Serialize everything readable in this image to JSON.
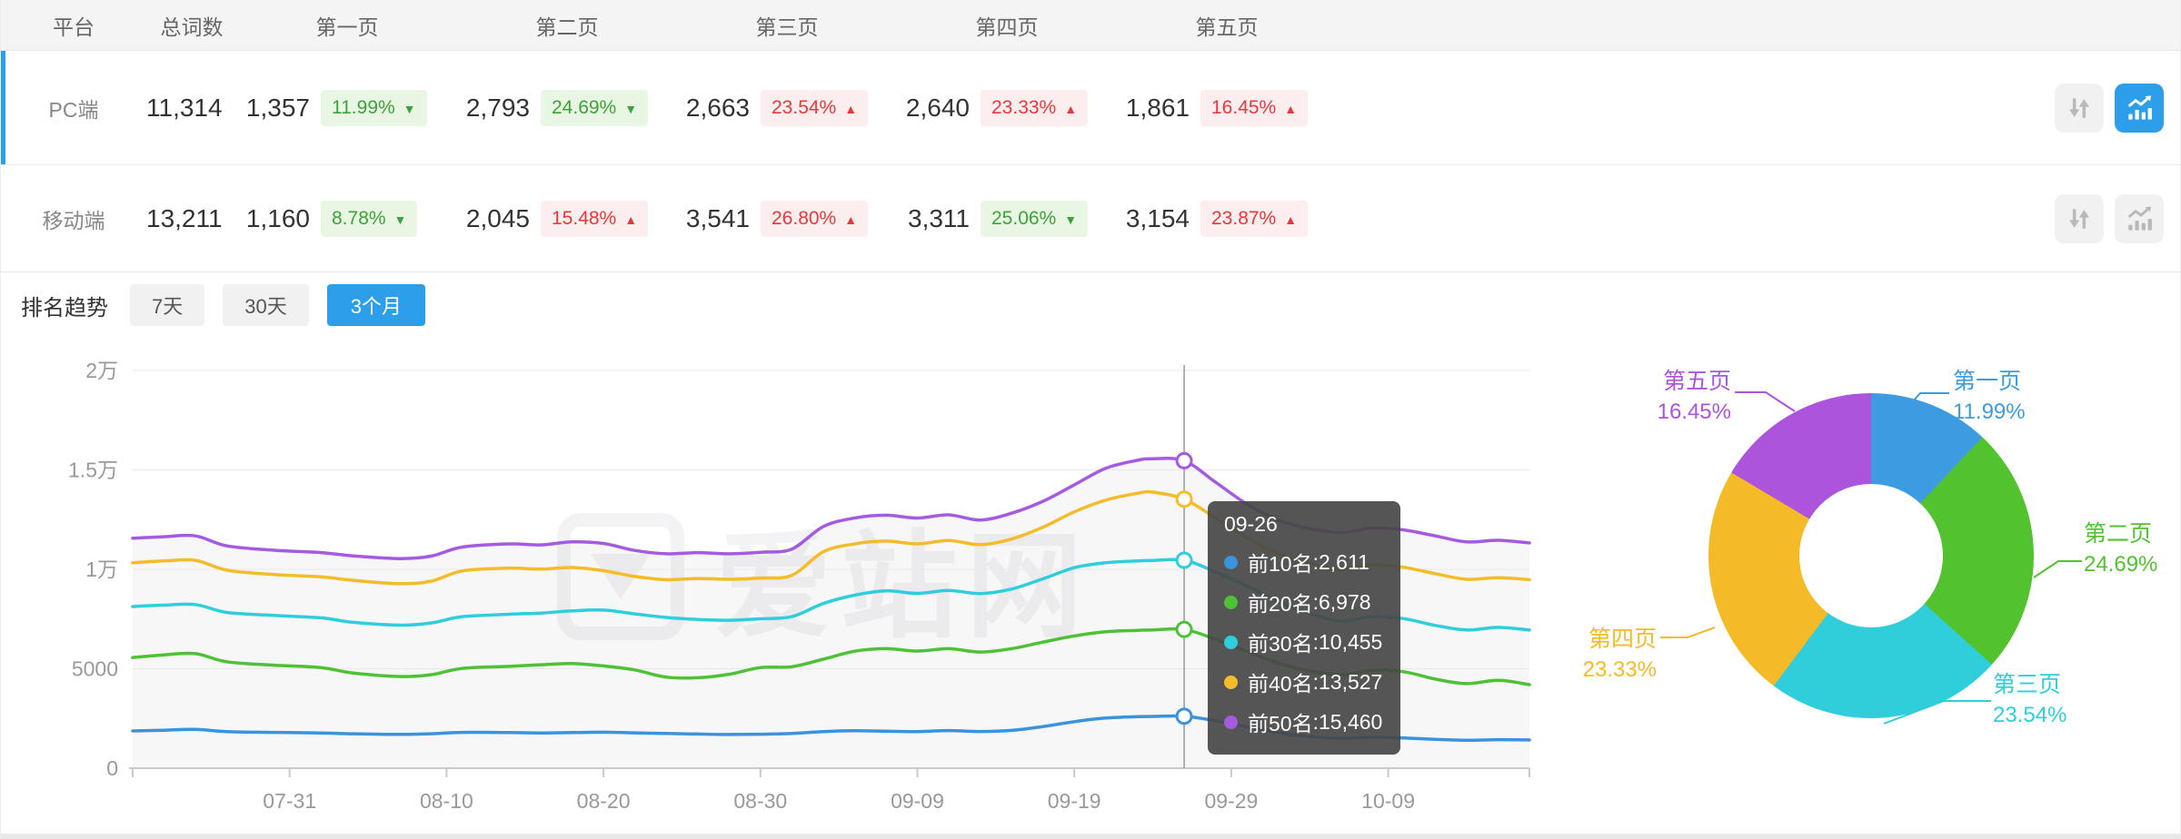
{
  "colors": {
    "accent": "#2d9ee9",
    "badge_green_bg": "#e9f6e4",
    "badge_green_text": "#3da23a",
    "badge_red_bg": "#fcedee",
    "badge_red_text": "#e6393b"
  },
  "table": {
    "headers": [
      "平台",
      "总词数",
      "第一页",
      "第二页",
      "第三页",
      "第四页",
      "第五页"
    ],
    "rows": [
      {
        "platform": "PC端",
        "total": "11,314",
        "selected": true,
        "pages": [
          {
            "count": "1,357",
            "pct": "11.99%",
            "arrow": "▼",
            "tone": "green"
          },
          {
            "count": "2,793",
            "pct": "24.69%",
            "arrow": "▼",
            "tone": "green"
          },
          {
            "count": "2,663",
            "pct": "23.54%",
            "arrow": "▲",
            "tone": "red"
          },
          {
            "count": "2,640",
            "pct": "23.33%",
            "arrow": "▲",
            "tone": "red"
          },
          {
            "count": "1,861",
            "pct": "16.45%",
            "arrow": "▲",
            "tone": "red"
          }
        ]
      },
      {
        "platform": "移动端",
        "total": "13,211",
        "selected": false,
        "pages": [
          {
            "count": "1,160",
            "pct": "8.78%",
            "arrow": "▼",
            "tone": "green"
          },
          {
            "count": "2,045",
            "pct": "15.48%",
            "arrow": "▲",
            "tone": "red"
          },
          {
            "count": "3,541",
            "pct": "26.80%",
            "arrow": "▲",
            "tone": "red"
          },
          {
            "count": "3,311",
            "pct": "25.06%",
            "arrow": "▼",
            "tone": "green"
          },
          {
            "count": "3,154",
            "pct": "23.87%",
            "arrow": "▲",
            "tone": "red"
          }
        ]
      }
    ]
  },
  "trend": {
    "title": "排名趋势",
    "ranges": [
      {
        "label": "7天",
        "active": false
      },
      {
        "label": "30天",
        "active": false
      },
      {
        "label": "3个月",
        "active": true
      }
    ]
  },
  "tooltip": {
    "date": "09-26",
    "sep": ": ",
    "items": [
      {
        "label": "前10名",
        "value": "2,611",
        "color": "#3b93de"
      },
      {
        "label": "前20名",
        "value": "6,978",
        "color": "#4fc136"
      },
      {
        "label": "前30名",
        "value": "10,455",
        "color": "#2fcedc"
      },
      {
        "label": "前40名",
        "value": "13,527",
        "color": "#f5bc2a"
      },
      {
        "label": "前50名",
        "value": "15,460",
        "color": "#a55be0"
      }
    ]
  },
  "watermark": {
    "text": "爱站网"
  },
  "chart_data": [
    {
      "type": "line",
      "title": "排名趋势 3个月",
      "grid": true,
      "ylim": [
        0,
        20000
      ],
      "yticks": {
        "values": [
          0,
          5000,
          10000,
          15000,
          20000
        ],
        "labels": [
          "0",
          "5000",
          "1万",
          "1.5万",
          "2万"
        ]
      },
      "xticks": {
        "days": [
          0,
          10,
          20,
          30,
          40,
          50,
          60,
          70,
          80,
          89
        ],
        "labels": [
          "",
          "07-31",
          "08-10",
          "08-20",
          "08-30",
          "09-09",
          "09-19",
          "09-29",
          "10-09",
          ""
        ]
      },
      "highlight": {
        "day": 67,
        "date": "09-26"
      },
      "series": [
        {
          "name": "前10名",
          "color": "#3b93de",
          "points": [
            [
              0,
              1870
            ],
            [
              2,
              1910
            ],
            [
              4,
              1950
            ],
            [
              6,
              1840
            ],
            [
              9,
              1800
            ],
            [
              12,
              1770
            ],
            [
              14,
              1730
            ],
            [
              17,
              1700
            ],
            [
              19,
              1730
            ],
            [
              21,
              1800
            ],
            [
              24,
              1790
            ],
            [
              26,
              1770
            ],
            [
              28,
              1790
            ],
            [
              30,
              1810
            ],
            [
              32,
              1775
            ],
            [
              34,
              1745
            ],
            [
              36,
              1715
            ],
            [
              38,
              1695
            ],
            [
              40,
              1710
            ],
            [
              42,
              1745
            ],
            [
              44,
              1840
            ],
            [
              46,
              1880
            ],
            [
              48,
              1860
            ],
            [
              50,
              1840
            ],
            [
              52,
              1890
            ],
            [
              54,
              1845
            ],
            [
              56,
              1900
            ],
            [
              58,
              2090
            ],
            [
              60,
              2340
            ],
            [
              62,
              2520
            ],
            [
              64,
              2590
            ],
            [
              65,
              2605
            ],
            [
              67,
              2611
            ],
            [
              69,
              2380
            ],
            [
              71,
              2080
            ],
            [
              73,
              1790
            ],
            [
              75,
              1590
            ],
            [
              77,
              1500
            ],
            [
              79,
              1555
            ],
            [
              81,
              1520
            ],
            [
              83,
              1450
            ],
            [
              85,
              1400
            ],
            [
              87,
              1435
            ],
            [
              89,
              1420
            ]
          ]
        },
        {
          "name": "前20名",
          "color": "#4fc136",
          "points": [
            [
              0,
              5560
            ],
            [
              2,
              5700
            ],
            [
              4,
              5760
            ],
            [
              6,
              5350
            ],
            [
              9,
              5180
            ],
            [
              12,
              5060
            ],
            [
              14,
              4790
            ],
            [
              17,
              4610
            ],
            [
              19,
              4700
            ],
            [
              21,
              5020
            ],
            [
              24,
              5120
            ],
            [
              26,
              5200
            ],
            [
              28,
              5260
            ],
            [
              30,
              5140
            ],
            [
              32,
              4940
            ],
            [
              34,
              4580
            ],
            [
              36,
              4550
            ],
            [
              38,
              4720
            ],
            [
              40,
              5060
            ],
            [
              42,
              5100
            ],
            [
              44,
              5480
            ],
            [
              46,
              5880
            ],
            [
              48,
              6010
            ],
            [
              50,
              5890
            ],
            [
              52,
              6010
            ],
            [
              54,
              5840
            ],
            [
              56,
              6010
            ],
            [
              58,
              6340
            ],
            [
              60,
              6650
            ],
            [
              62,
              6860
            ],
            [
              64,
              6930
            ],
            [
              65,
              6950
            ],
            [
              67,
              6978
            ],
            [
              69,
              6480
            ],
            [
              71,
              5870
            ],
            [
              73,
              5280
            ],
            [
              75,
              4890
            ],
            [
              77,
              4700
            ],
            [
              79,
              4920
            ],
            [
              81,
              4850
            ],
            [
              83,
              4480
            ],
            [
              85,
              4250
            ],
            [
              87,
              4420
            ],
            [
              89,
              4200
            ]
          ]
        },
        {
          "name": "前30名",
          "color": "#2fcedc",
          "points": [
            [
              0,
              8130
            ],
            [
              2,
              8200
            ],
            [
              4,
              8230
            ],
            [
              6,
              7830
            ],
            [
              9,
              7680
            ],
            [
              12,
              7560
            ],
            [
              14,
              7340
            ],
            [
              17,
              7190
            ],
            [
              19,
              7300
            ],
            [
              21,
              7620
            ],
            [
              24,
              7740
            ],
            [
              26,
              7800
            ],
            [
              28,
              7910
            ],
            [
              30,
              7950
            ],
            [
              32,
              7760
            ],
            [
              34,
              7580
            ],
            [
              36,
              7480
            ],
            [
              38,
              7440
            ],
            [
              40,
              7510
            ],
            [
              42,
              7620
            ],
            [
              44,
              8280
            ],
            [
              46,
              8700
            ],
            [
              48,
              8920
            ],
            [
              50,
              8790
            ],
            [
              52,
              8940
            ],
            [
              54,
              8780
            ],
            [
              56,
              9010
            ],
            [
              58,
              9520
            ],
            [
              60,
              10080
            ],
            [
              62,
              10330
            ],
            [
              64,
              10420
            ],
            [
              65,
              10445
            ],
            [
              67,
              10455
            ],
            [
              69,
              9870
            ],
            [
              71,
              9150
            ],
            [
              73,
              8380
            ],
            [
              75,
              7780
            ],
            [
              77,
              7400
            ],
            [
              79,
              7620
            ],
            [
              81,
              7520
            ],
            [
              83,
              7180
            ],
            [
              85,
              6950
            ],
            [
              87,
              7080
            ],
            [
              89,
              6950
            ]
          ]
        },
        {
          "name": "前40名",
          "color": "#f5bc2a",
          "points": [
            [
              0,
              10330
            ],
            [
              2,
              10420
            ],
            [
              4,
              10450
            ],
            [
              6,
              9960
            ],
            [
              9,
              9740
            ],
            [
              12,
              9620
            ],
            [
              14,
              9450
            ],
            [
              17,
              9280
            ],
            [
              19,
              9400
            ],
            [
              21,
              9920
            ],
            [
              24,
              10060
            ],
            [
              26,
              10010
            ],
            [
              28,
              10090
            ],
            [
              30,
              9930
            ],
            [
              32,
              9640
            ],
            [
              34,
              9480
            ],
            [
              36,
              9540
            ],
            [
              38,
              9500
            ],
            [
              40,
              9560
            ],
            [
              42,
              9700
            ],
            [
              44,
              10880
            ],
            [
              46,
              11280
            ],
            [
              48,
              11420
            ],
            [
              50,
              11280
            ],
            [
              52,
              11450
            ],
            [
              54,
              11240
            ],
            [
              56,
              11520
            ],
            [
              58,
              12120
            ],
            [
              60,
              12890
            ],
            [
              62,
              13480
            ],
            [
              64,
              13820
            ],
            [
              65,
              13880
            ],
            [
              67,
              13527
            ],
            [
              69,
              12580
            ],
            [
              71,
              11580
            ],
            [
              73,
              10780
            ],
            [
              75,
              10280
            ],
            [
              77,
              10000
            ],
            [
              79,
              10220
            ],
            [
              81,
              10100
            ],
            [
              83,
              9780
            ],
            [
              85,
              9500
            ],
            [
              87,
              9580
            ],
            [
              89,
              9480
            ]
          ]
        },
        {
          "name": "前50名",
          "color": "#a55be0",
          "points": [
            [
              0,
              11560
            ],
            [
              2,
              11640
            ],
            [
              4,
              11680
            ],
            [
              6,
              11180
            ],
            [
              9,
              10960
            ],
            [
              12,
              10840
            ],
            [
              14,
              10680
            ],
            [
              17,
              10540
            ],
            [
              19,
              10660
            ],
            [
              21,
              11120
            ],
            [
              24,
              11280
            ],
            [
              26,
              11230
            ],
            [
              28,
              11380
            ],
            [
              30,
              11300
            ],
            [
              32,
              10950
            ],
            [
              34,
              10780
            ],
            [
              36,
              10840
            ],
            [
              38,
              10780
            ],
            [
              40,
              10860
            ],
            [
              42,
              11020
            ],
            [
              44,
              12150
            ],
            [
              46,
              12580
            ],
            [
              48,
              12720
            ],
            [
              50,
              12580
            ],
            [
              52,
              12740
            ],
            [
              54,
              12480
            ],
            [
              56,
              12820
            ],
            [
              58,
              13420
            ],
            [
              60,
              14250
            ],
            [
              62,
              15080
            ],
            [
              64,
              15480
            ],
            [
              65,
              15560
            ],
            [
              67,
              15460
            ],
            [
              69,
              14380
            ],
            [
              71,
              13280
            ],
            [
              73,
              12480
            ],
            [
              75,
              12050
            ],
            [
              77,
              11850
            ],
            [
              79,
              12080
            ],
            [
              81,
              11980
            ],
            [
              83,
              11680
            ],
            [
              85,
              11380
            ],
            [
              87,
              11460
            ],
            [
              89,
              11330
            ]
          ]
        }
      ]
    },
    {
      "type": "pie",
      "slices": [
        {
          "label": "第一页",
          "pct": 11.99,
          "display": "11.99%",
          "color": "#3d9ce1"
        },
        {
          "label": "第二页",
          "pct": 24.69,
          "display": "24.69%",
          "color": "#52c22f"
        },
        {
          "label": "第三页",
          "pct": 23.54,
          "display": "23.54%",
          "color": "#30cdda"
        },
        {
          "label": "第四页",
          "pct": 23.33,
          "display": "23.33%",
          "color": "#f5ba27"
        },
        {
          "label": "第五页",
          "pct": 16.45,
          "display": "16.45%",
          "color": "#ac54dc"
        }
      ]
    }
  ]
}
